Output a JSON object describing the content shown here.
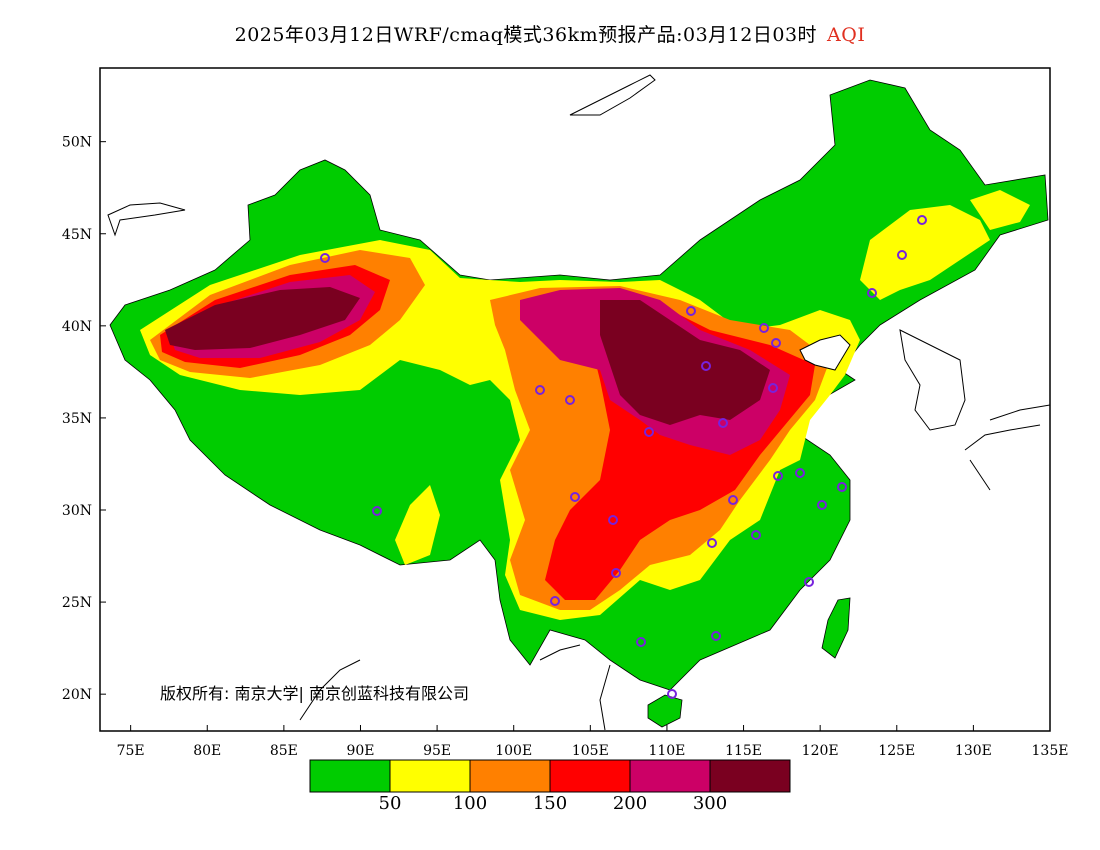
{
  "title": {
    "main": "2025年03月12日WRF/cmaq模式36km预报产品:03月12日03时",
    "variable": "AQI",
    "variable_color": "#e03020"
  },
  "map": {
    "lon_range": [
      73,
      135
    ],
    "lat_range": [
      18,
      54
    ],
    "lon_ticks": [
      "75E",
      "80E",
      "85E",
      "90E",
      "95E",
      "100E",
      "105E",
      "110E",
      "115E",
      "120E",
      "125E",
      "130E",
      "135E"
    ],
    "lat_ticks": [
      "20N",
      "25N",
      "30N",
      "35N",
      "40N",
      "45N",
      "50N"
    ]
  },
  "colorbar": {
    "colors": [
      "#00cc00",
      "#ffff00",
      "#ff8000",
      "#ff0000",
      "#cc0066",
      "#7a0020"
    ],
    "labels": [
      "50",
      "100",
      "150",
      "200",
      "300"
    ]
  },
  "copyright": "版权所有: 南京大学| 南京创蓝科技有限公司"
}
